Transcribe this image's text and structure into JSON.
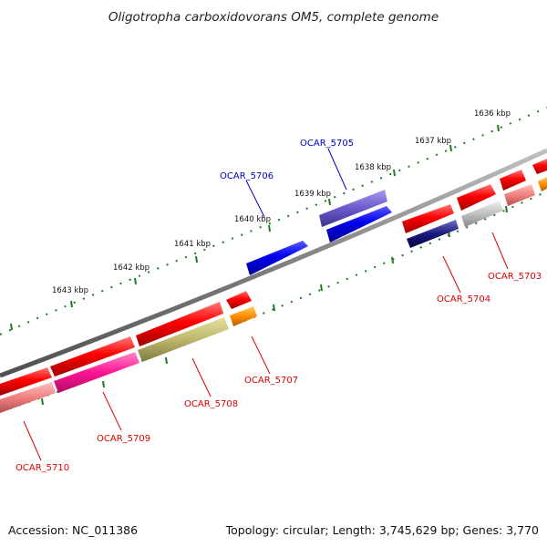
{
  "title": "Oligotropha carboxidovorans OM5, complete genome",
  "footer": {
    "accession": "Accession: NC_011386",
    "summary": "Topology: circular; Length: 3,745,629 bp; Genes: 3,770"
  },
  "colors": {
    "backbone": "#808080",
    "tick": "#1e7a1e",
    "label_plus": "#0000cc",
    "label_minus": "#dd0000"
  },
  "scale": {
    "unit": "kbp",
    "ticks": [
      {
        "label": "1636 kbp"
      },
      {
        "label": "1637 kbp"
      },
      {
        "label": "1638 kbp"
      },
      {
        "label": "1639 kbp"
      },
      {
        "label": "1640 kbp"
      },
      {
        "label": "1641 kbp"
      },
      {
        "label": "1642 kbp"
      },
      {
        "label": "1643 kbp"
      }
    ]
  },
  "genes": {
    "labelled": [
      {
        "id": "OCAR_5703",
        "strand": "minus"
      },
      {
        "id": "OCAR_5704",
        "strand": "minus"
      },
      {
        "id": "OCAR_5705",
        "strand": "plus"
      },
      {
        "id": "OCAR_5706",
        "strand": "plus"
      },
      {
        "id": "OCAR_5707",
        "strand": "minus"
      },
      {
        "id": "OCAR_5708",
        "strand": "minus"
      },
      {
        "id": "OCAR_5709",
        "strand": "minus"
      },
      {
        "id": "OCAR_5710",
        "strand": "minus"
      }
    ]
  }
}
